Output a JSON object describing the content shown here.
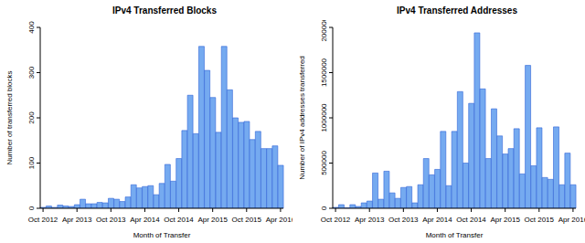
{
  "chart_data": [
    {
      "type": "bar",
      "title": "IPv4 Transferred Blocks",
      "x_label": "Month of Transfer",
      "y_label": "Number of transferred blocks",
      "categories": [
        "Oct 2012",
        null,
        null,
        null,
        null,
        null,
        "Apr 2013",
        null,
        null,
        null,
        null,
        null,
        "Oct 2013",
        null,
        null,
        null,
        null,
        null,
        "Apr 2014",
        null,
        null,
        null,
        null,
        null,
        "Oct 2014",
        null,
        null,
        null,
        null,
        null,
        "Apr 2015",
        null,
        null,
        null,
        null,
        null,
        "Oct 2015",
        null,
        null,
        null,
        null,
        null,
        "Apr 2016"
      ],
      "values": [
        2,
        5,
        2,
        7,
        5,
        4,
        8,
        20,
        10,
        10,
        13,
        12,
        22,
        20,
        15,
        25,
        52,
        45,
        48,
        50,
        30,
        55,
        97,
        60,
        110,
        172,
        250,
        165,
        358,
        305,
        245,
        168,
        358,
        262,
        200,
        190,
        192,
        152,
        170,
        132,
        132,
        138,
        95
      ],
      "color": "#75aaf0",
      "ylim": [
        0,
        400
      ],
      "yticks": [
        0,
        100,
        200,
        300,
        400
      ],
      "grid": false
    },
    {
      "type": "bar",
      "title": "IPv4 Transferred Addresses",
      "x_label": "Month of Transfer",
      "y_label": "Number of IPv4 addresses transferred",
      "categories": [
        "Oct 2012",
        null,
        null,
        null,
        null,
        null,
        "Apr 2013",
        null,
        null,
        null,
        null,
        null,
        "Oct 2013",
        null,
        null,
        null,
        null,
        null,
        "Apr 2014",
        null,
        null,
        null,
        null,
        null,
        "Oct 2014",
        null,
        null,
        null,
        null,
        null,
        "Apr 2015",
        null,
        null,
        null,
        null,
        null,
        "Oct 2015",
        null,
        null,
        null,
        null,
        null,
        "Apr 2016"
      ],
      "values": [
        10000,
        40000,
        5000,
        40000,
        20000,
        60000,
        80000,
        390000,
        100000,
        410000,
        170000,
        110000,
        230000,
        240000,
        60000,
        260000,
        550000,
        370000,
        430000,
        850000,
        250000,
        850000,
        1290000,
        500000,
        1160000,
        1940000,
        1320000,
        550000,
        1100000,
        800000,
        600000,
        660000,
        880000,
        380000,
        1580000,
        470000,
        890000,
        340000,
        320000,
        900000,
        260000,
        610000,
        260000
      ],
      "color": "#75aaf0",
      "ylim": [
        0,
        2000000
      ],
      "yticks": [
        0,
        500000,
        1000000,
        1500000,
        2000000
      ],
      "grid": false
    }
  ]
}
